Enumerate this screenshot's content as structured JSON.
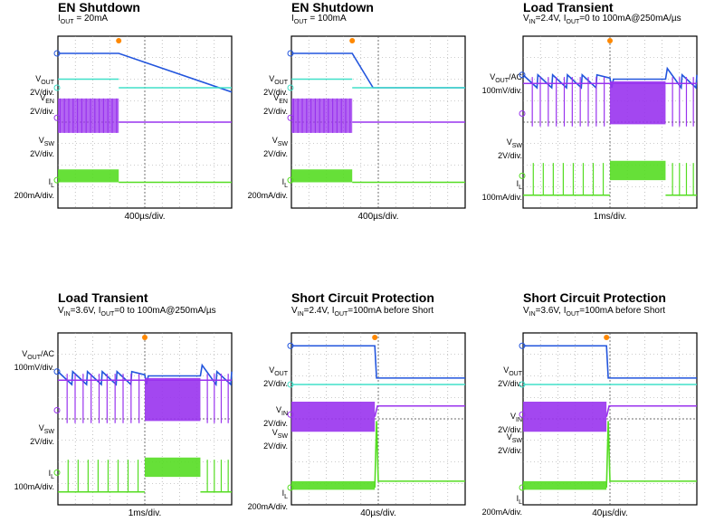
{
  "chart_data": [
    {
      "type": "line",
      "title": "EN Shutdown",
      "subtitle": "I_OUT = 20mA",
      "timebase": "400µs/div.",
      "channels": [
        {
          "label": "V_OUT",
          "scale": "2V/div.",
          "color": "#2255dd",
          "waveform": "step_ramp",
          "level_div": 7.2,
          "marker": "1"
        },
        {
          "label": "V_EN",
          "scale": "2V/div.",
          "color": "#40e0c8",
          "waveform": "step_up",
          "level_div": 5.6,
          "marker": "2"
        },
        {
          "label": "V_SW",
          "scale": "2V/div.",
          "color": "#9933ee",
          "waveform": "switching_then_flat",
          "level_div": 4.2,
          "marker": "3"
        },
        {
          "label": "I_L",
          "scale": "200mA/div.",
          "color": "#55dd22",
          "waveform": "ripple_then_zero",
          "level_div": 1.3,
          "marker": "4"
        }
      ],
      "trigger_div": 3.5
    },
    {
      "type": "line",
      "title": "EN Shutdown",
      "subtitle": "I_OUT = 100mA",
      "timebase": "400µs/div.",
      "channels": [
        {
          "label": "V_OUT",
          "scale": "2V/div.",
          "color": "#2255dd",
          "waveform": "step_ramp_fast",
          "level_div": 7.2,
          "marker": "1"
        },
        {
          "label": "V_EN",
          "scale": "2V/div.",
          "color": "#40e0c8",
          "waveform": "step_up",
          "level_div": 5.6,
          "marker": "2"
        },
        {
          "label": "V_SW",
          "scale": "2V/div.",
          "color": "#9933ee",
          "waveform": "switching_then_flat",
          "level_div": 4.2,
          "marker": "3"
        },
        {
          "label": "I_L",
          "scale": "200mA/div.",
          "color": "#55dd22",
          "waveform": "ripple_then_zero",
          "level_div": 1.3,
          "marker": "4"
        }
      ],
      "trigger_div": 3.5
    },
    {
      "type": "line",
      "title": "Load Transient",
      "subtitle": "V_IN=2.4V, I_OUT=0 to 100mA@250mA/µs",
      "timebase": "1ms/div.",
      "channels": [
        {
          "label": "V_OUT/AC",
          "scale": "100mV/div.",
          "color": "#2255dd",
          "waveform": "sawtooth_flat_sawtooth",
          "level_div": 6.2,
          "marker": "1"
        },
        {
          "label": "V_SW",
          "scale": "2V/div.",
          "color": "#9933ee",
          "waveform": "spikes_block_spikes",
          "level_div": 4.4,
          "marker": "3"
        },
        {
          "label": "I_L",
          "scale": "100mA/div.",
          "color": "#55dd22",
          "waveform": "spikes_block_spikes_low",
          "level_div": 1.5,
          "marker": "4"
        }
      ],
      "trigger_div": 5.0
    },
    {
      "type": "line",
      "title": "Load Transient",
      "subtitle": "V_IN=3.6V, I_OUT=0 to 100mA@250mA/µs",
      "timebase": "1ms/div.",
      "channels": [
        {
          "label": "V_OUT/AC",
          "scale": "100mV/div.",
          "color": "#2255dd",
          "waveform": "sawtooth_flat_sawtooth",
          "level_div": 6.2,
          "marker": "1"
        },
        {
          "label": "V_SW",
          "scale": "2V/div.",
          "color": "#9933ee",
          "waveform": "spikes_block_spikes",
          "level_div": 4.4,
          "marker": "3"
        },
        {
          "label": "I_L",
          "scale": "100mA/div.",
          "color": "#55dd22",
          "waveform": "spikes_block_spikes_low",
          "level_div": 1.5,
          "marker": "4"
        }
      ],
      "trigger_div": 5.0
    },
    {
      "type": "line",
      "title": "Short Circuit Protection",
      "subtitle": "V_IN=2.4V, I_OUT=100mA before Short",
      "timebase": "40µs/div.",
      "channels": [
        {
          "label": "V_OUT",
          "scale": "2V/div.",
          "color": "#2255dd",
          "waveform": "high_then_drop",
          "level_div": 7.4,
          "marker": "1"
        },
        {
          "label": "V_IN",
          "scale": "2V/div.",
          "color": "#40e0c8",
          "waveform": "flat",
          "level_div": 5.6,
          "marker": "2"
        },
        {
          "label": "V_SW",
          "scale": "2V/div.",
          "color": "#9933ee",
          "waveform": "block_then_flat",
          "level_div": 4.2,
          "marker": "3"
        },
        {
          "label": "I_L",
          "scale": "200mA/div.",
          "color": "#55dd22",
          "waveform": "ripple_then_drop",
          "level_div": 0.8,
          "marker": "4"
        }
      ],
      "trigger_div": 4.8
    },
    {
      "type": "line",
      "title": "Short Circuit Protection",
      "subtitle": "V_IN=3.6V, I_OUT=100mA before Short",
      "timebase": "40µs/div.",
      "channels": [
        {
          "label": "V_OUT",
          "scale": "2V/div.",
          "color": "#2255dd",
          "waveform": "high_then_drop",
          "level_div": 7.4,
          "marker": "1"
        },
        {
          "label": "V_IN",
          "scale": "2V/div.",
          "color": "#40e0c8",
          "waveform": "flat",
          "level_div": 5.6,
          "marker": "2"
        },
        {
          "label": "V_SW",
          "scale": "2V/div.",
          "color": "#9933ee",
          "waveform": "block_then_flat",
          "level_div": 4.2,
          "marker": "3"
        },
        {
          "label": "I_L",
          "scale": "200mA/div.",
          "color": "#55dd22",
          "waveform": "ripple_then_drop",
          "level_div": 0.8,
          "marker": "4"
        }
      ],
      "trigger_div": 4.8
    }
  ]
}
